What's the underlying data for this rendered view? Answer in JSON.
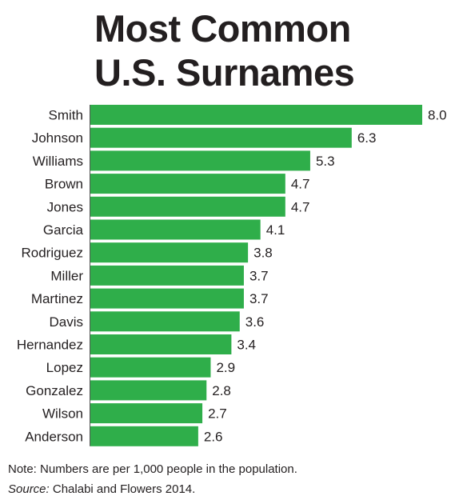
{
  "title_line1": "Most Common",
  "title_line2": "U.S. Surnames",
  "note": "Note: Numbers are per 1,000 people in the population.",
  "source_label": "Source:",
  "source_text": " Chalabi and Flowers 2014.",
  "colors": {
    "bar": "#2fae4a",
    "text": "#231f20"
  },
  "chart_data": {
    "type": "bar",
    "orientation": "horizontal",
    "categories": [
      "Smith",
      "Johnson",
      "Williams",
      "Brown",
      "Jones",
      "Garcia",
      "Rodriguez",
      "Miller",
      "Martinez",
      "Davis",
      "Hernandez",
      "Lopez",
      "Gonzalez",
      "Wilson",
      "Anderson"
    ],
    "values": [
      8.0,
      6.3,
      5.3,
      4.7,
      4.7,
      4.1,
      3.8,
      3.7,
      3.7,
      3.6,
      3.4,
      2.9,
      2.8,
      2.7,
      2.6
    ],
    "value_labels": [
      "8.0",
      "6.3",
      "5.3",
      "4.7",
      "4.7",
      "4.1",
      "3.8",
      "3.7",
      "3.7",
      "3.6",
      "3.4",
      "2.9",
      "2.8",
      "2.7",
      "2.6"
    ],
    "title": "Most Common U.S. Surnames",
    "xlabel": "",
    "ylabel": "",
    "xlim": [
      0,
      8.0
    ],
    "grid": false,
    "legend": "none"
  }
}
